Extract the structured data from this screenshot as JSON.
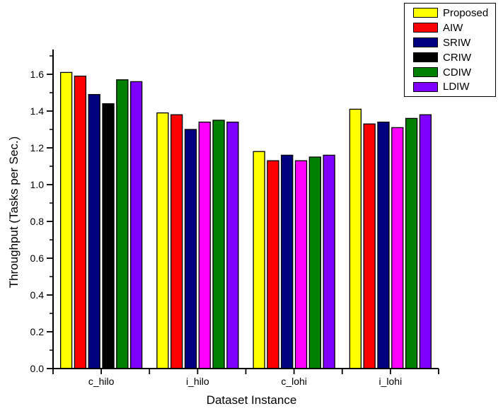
{
  "chart_data": {
    "type": "bar",
    "title": "",
    "xlabel": "Dataset Instance",
    "ylabel": "Throughput (Tasks per Sec.)",
    "categories": [
      "c_hilo",
      "i_hilo",
      "c_lohi",
      "i_lohi"
    ],
    "series": [
      {
        "name": "Proposed",
        "color": "#FFFF00",
        "values": [
          1.61,
          1.39,
          1.18,
          1.41
        ]
      },
      {
        "name": "AIW",
        "color": "#FF0000",
        "values": [
          1.59,
          1.38,
          1.13,
          1.33
        ]
      },
      {
        "name": "SRIW",
        "color": "#000080",
        "values": [
          1.49,
          1.3,
          1.16,
          1.34
        ]
      },
      {
        "name": "CRIW",
        "color": "#000000",
        "bar_colors": [
          "#000000",
          "#FF00FF",
          "#FF00FF",
          "#FF00FF"
        ],
        "values": [
          1.44,
          1.34,
          1.13,
          1.31
        ]
      },
      {
        "name": "CDIW",
        "color": "#008000",
        "values": [
          1.57,
          1.35,
          1.15,
          1.36
        ]
      },
      {
        "name": "LDIW",
        "color": "#8000FF",
        "values": [
          1.56,
          1.34,
          1.16,
          1.38
        ]
      }
    ],
    "ylim": [
      0.0,
      1.74
    ],
    "yticks": [
      0.0,
      0.2,
      0.4,
      0.6,
      0.8,
      1.0,
      1.2,
      1.4,
      1.6
    ],
    "ytick_labels": [
      "0.0",
      "0.2",
      "0.4",
      "0.6",
      "0.8",
      "1.0",
      "1.2",
      "1.4",
      "1.6"
    ],
    "minor_ytick_step": 0.1,
    "grid": false,
    "legend_position": "top-right",
    "bar_outline_color": "#000000",
    "axis_color": "#000000"
  }
}
